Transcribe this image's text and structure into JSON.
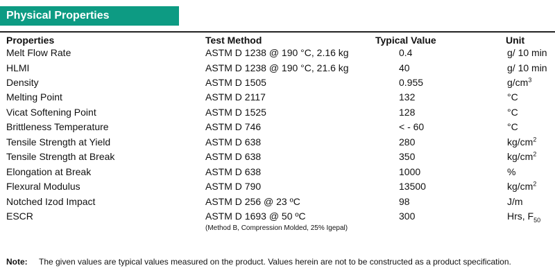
{
  "banner": {
    "title": "Physical Properties"
  },
  "table": {
    "headers": {
      "property": "Properties",
      "method": "Test Method",
      "value": "Typical Value",
      "unit": "Unit"
    },
    "rows": [
      {
        "property": "Melt Flow Rate",
        "method": "ASTM D 1238 @ 190 °C, 2.16 kg",
        "value": "0.4",
        "unit": "g/ 10 min"
      },
      {
        "property": "HLMI",
        "method": "ASTM D 1238 @ 190 °C, 21.6 kg",
        "value": "40",
        "unit": "g/ 10 min"
      },
      {
        "property": "Density",
        "method": "ASTM D 1505",
        "value": "0.955",
        "unit": "g/cm",
        "unit_sup": "3"
      },
      {
        "property": "Melting Point",
        "method": "ASTM D 2117",
        "value": "132",
        "unit": "°C"
      },
      {
        "property": "Vicat Softening Point",
        "method": "ASTM D 1525",
        "value": "128",
        "unit": "°C"
      },
      {
        "property": "Brittleness Temperature",
        "method": "ASTM D 746",
        "value": "< - 60",
        "unit": "°C"
      },
      {
        "property": "Tensile Strength at Yield",
        "method": "ASTM D 638",
        "value": "280",
        "unit": "kg/cm",
        "unit_sup": "2"
      },
      {
        "property": "Tensile Strength at Break",
        "method": "ASTM D 638",
        "value": "350",
        "unit": "kg/cm",
        "unit_sup": "2"
      },
      {
        "property": "Elongation at Break",
        "method": "ASTM D 638",
        "value": "1000",
        "unit": "%"
      },
      {
        "property": "Flexural Modulus",
        "method": "ASTM D 790",
        "value": "13500",
        "unit": "kg/cm",
        "unit_sup": "2"
      },
      {
        "property": "Notched Izod Impact",
        "method": "ASTM D 256 @ 23 ºC",
        "value": "98",
        "unit": "J/m"
      },
      {
        "property": "ESCR",
        "method": "ASTM D 1693 @ 50 ºC",
        "value": "300",
        "unit": "Hrs, F",
        "unit_sub": "50"
      }
    ],
    "escr_note": "(Method B, Compression Molded, 25% Igepal)"
  },
  "note": {
    "label": "Note:",
    "text": "The given values are typical values measured on the product. Values herein are not to be constructed as a product specification."
  }
}
